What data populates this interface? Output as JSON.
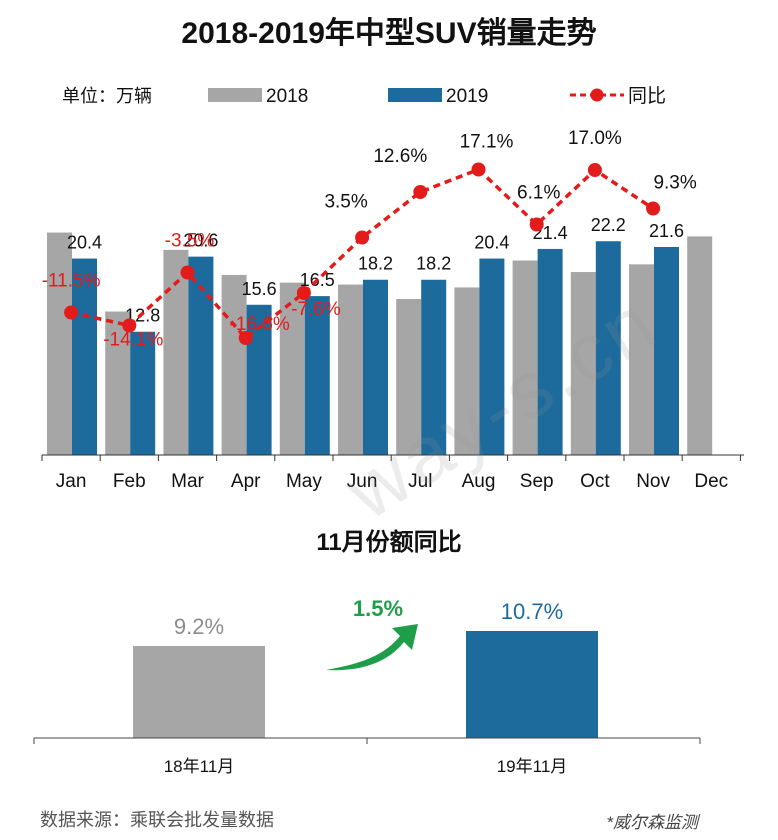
{
  "colors": {
    "series_2018": "#a6a6a6",
    "series_2019": "#1d6b9c",
    "yoy_line": "#e31b1b",
    "green_arrow": "#1f9e4a"
  },
  "header": {
    "title": "2018-2019年中型SUV销量走势",
    "unit": "单位：万辆"
  },
  "legend": {
    "s2018": "2018",
    "s2019": "2019",
    "yoy": "同比"
  },
  "chart_data": [
    {
      "type": "bar",
      "title": "2018-2019年中型SUV销量走势",
      "unit": "万辆",
      "categories": [
        "Jan",
        "Feb",
        "Mar",
        "Apr",
        "May",
        "Jun",
        "Jul",
        "Aug",
        "Sep",
        "Oct",
        "Nov",
        "Dec"
      ],
      "ylim": [
        0,
        27
      ],
      "series": [
        {
          "name": "2018",
          "values": [
            23.1,
            14.9,
            21.3,
            18.7,
            17.9,
            17.7,
            16.2,
            17.4,
            20.2,
            19.0,
            19.8,
            22.7
          ],
          "labels": [
            "",
            "",
            "",
            "",
            "",
            "",
            "",
            "",
            "",
            "",
            "",
            ""
          ]
        },
        {
          "name": "2019",
          "values": [
            20.4,
            12.8,
            20.6,
            15.6,
            16.5,
            18.2,
            18.2,
            20.4,
            21.4,
            22.2,
            21.6,
            null
          ],
          "labels": [
            "20.4",
            "12.8",
            "20.6",
            "15.6",
            "16.5",
            "18.2",
            "18.2",
            "20.4",
            "21.4",
            "22.2",
            "21.6",
            ""
          ]
        }
      ],
      "yoy": {
        "name": "同比",
        "values": [
          -11.5,
          -14.1,
          -3.5,
          -16.6,
          -7.6,
          3.5,
          12.6,
          17.1,
          6.1,
          17.0,
          9.3
        ],
        "labels": [
          "-11.5%",
          "-14.1%",
          "-3.5%",
          "-16.6%",
          "-7.6%",
          "3.5%",
          "12.6%",
          "17.1%",
          "6.1%",
          "17.0%",
          "9.3%"
        ],
        "ylim": [
          -40,
          25
        ]
      }
    },
    {
      "type": "bar",
      "title": "11月份额同比",
      "categories": [
        "18年11月",
        "19年11月"
      ],
      "values": [
        9.2,
        10.7
      ],
      "labels": [
        "9.2%",
        "10.7%"
      ],
      "ylim": [
        0,
        12.5
      ],
      "change_label": "1.5%"
    }
  ],
  "share": {
    "title": "11月份额同比"
  },
  "footer": {
    "source": "数据来源：乘联会批发量数据",
    "credit": "*威尔森监测"
  },
  "watermark": "way-s.cn"
}
